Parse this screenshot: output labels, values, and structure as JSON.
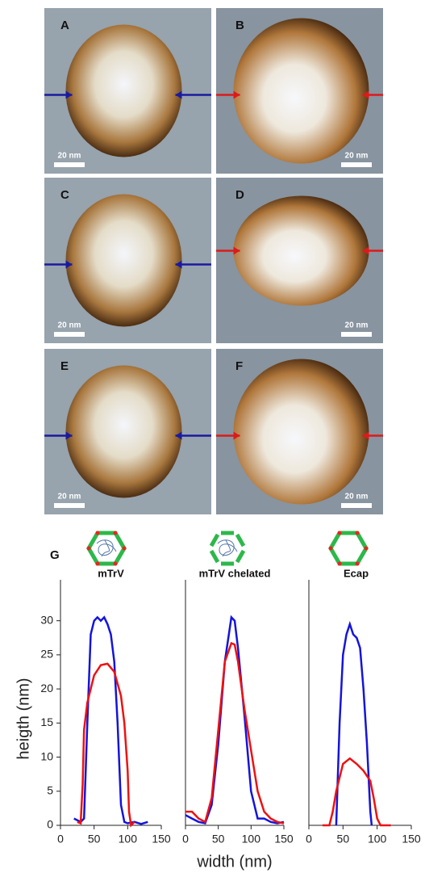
{
  "panels": [
    {
      "label": "A",
      "scale_bar": "20 nm"
    },
    {
      "label": "B",
      "scale_bar": "20 nm"
    },
    {
      "label": "C",
      "scale_bar": "20 nm"
    },
    {
      "label": "D",
      "scale_bar": "20 nm"
    },
    {
      "label": "E",
      "scale_bar": "20 nm"
    },
    {
      "label": "F",
      "scale_bar": "20 nm"
    }
  ],
  "panel_g_label": "G",
  "chart_data": [
    {
      "type": "line",
      "title": "mTrV",
      "ylabel": "heigth (nm)",
      "xlim": [
        0,
        150
      ],
      "ylim": [
        0,
        36
      ],
      "xticks": [
        0,
        50,
        100,
        150
      ],
      "yticks": [
        0,
        5,
        10,
        15,
        20,
        25,
        30
      ],
      "series": [
        {
          "color": "#1414dc",
          "x": [
            20,
            30,
            35,
            40,
            45,
            50,
            55,
            60,
            65,
            70,
            75,
            80,
            85,
            90,
            95,
            100,
            110,
            120,
            130
          ],
          "values": [
            1,
            0.5,
            1,
            15,
            28,
            30,
            30.5,
            30,
            30.5,
            29.5,
            28,
            24,
            15,
            3,
            0.5,
            0.3,
            0.5,
            0.2,
            0.5
          ]
        },
        {
          "color": "#ee1111",
          "x": [
            25,
            30,
            33,
            35,
            40,
            50,
            60,
            70,
            80,
            90,
            95,
            100,
            102,
            105,
            110
          ],
          "values": [
            0.5,
            0.3,
            6,
            14,
            18,
            22,
            23.5,
            23.7,
            22.5,
            19,
            15,
            8,
            2,
            0,
            0.5
          ]
        }
      ]
    },
    {
      "type": "line",
      "title": "mTrV chelated",
      "xlabel": "width (nm)",
      "xlim": [
        0,
        150
      ],
      "ylim": [
        0,
        36
      ],
      "xticks": [
        0,
        50,
        100,
        150
      ],
      "series": [
        {
          "color": "#1414dc",
          "x": [
            0,
            10,
            20,
            30,
            40,
            50,
            60,
            70,
            75,
            80,
            90,
            100,
            110,
            120,
            130,
            140,
            150
          ],
          "values": [
            1.5,
            1,
            0.5,
            0.3,
            3,
            12,
            24,
            30.5,
            30,
            26,
            16,
            5,
            1,
            1,
            0.5,
            0.3,
            0.5
          ]
        },
        {
          "color": "#ee1111",
          "x": [
            0,
            10,
            20,
            30,
            40,
            50,
            60,
            70,
            75,
            80,
            90,
            100,
            110,
            120,
            130,
            140,
            150
          ],
          "values": [
            2,
            2,
            1,
            0.5,
            4,
            14,
            24,
            26.7,
            26.5,
            24,
            17,
            11,
            5,
            2,
            1,
            0.5,
            0.3
          ]
        }
      ]
    },
    {
      "type": "line",
      "title": "Ecap",
      "xlim": [
        0,
        150
      ],
      "ylim": [
        0,
        36
      ],
      "xticks": [
        0,
        50,
        100,
        150
      ],
      "series": [
        {
          "color": "#1414dc",
          "x": [
            40,
            45,
            50,
            55,
            60,
            65,
            70,
            75,
            80,
            85,
            90,
            92
          ],
          "values": [
            0,
            15,
            25,
            28,
            29.5,
            28,
            27.5,
            26,
            20,
            12,
            2,
            0
          ]
        },
        {
          "color": "#ee1111",
          "x": [
            20,
            30,
            35,
            40,
            50,
            60,
            70,
            80,
            90,
            95,
            100,
            105,
            120
          ],
          "values": [
            0,
            0,
            2,
            5,
            9,
            9.8,
            9,
            8,
            6.5,
            4,
            1,
            0,
            0
          ]
        }
      ]
    }
  ]
}
